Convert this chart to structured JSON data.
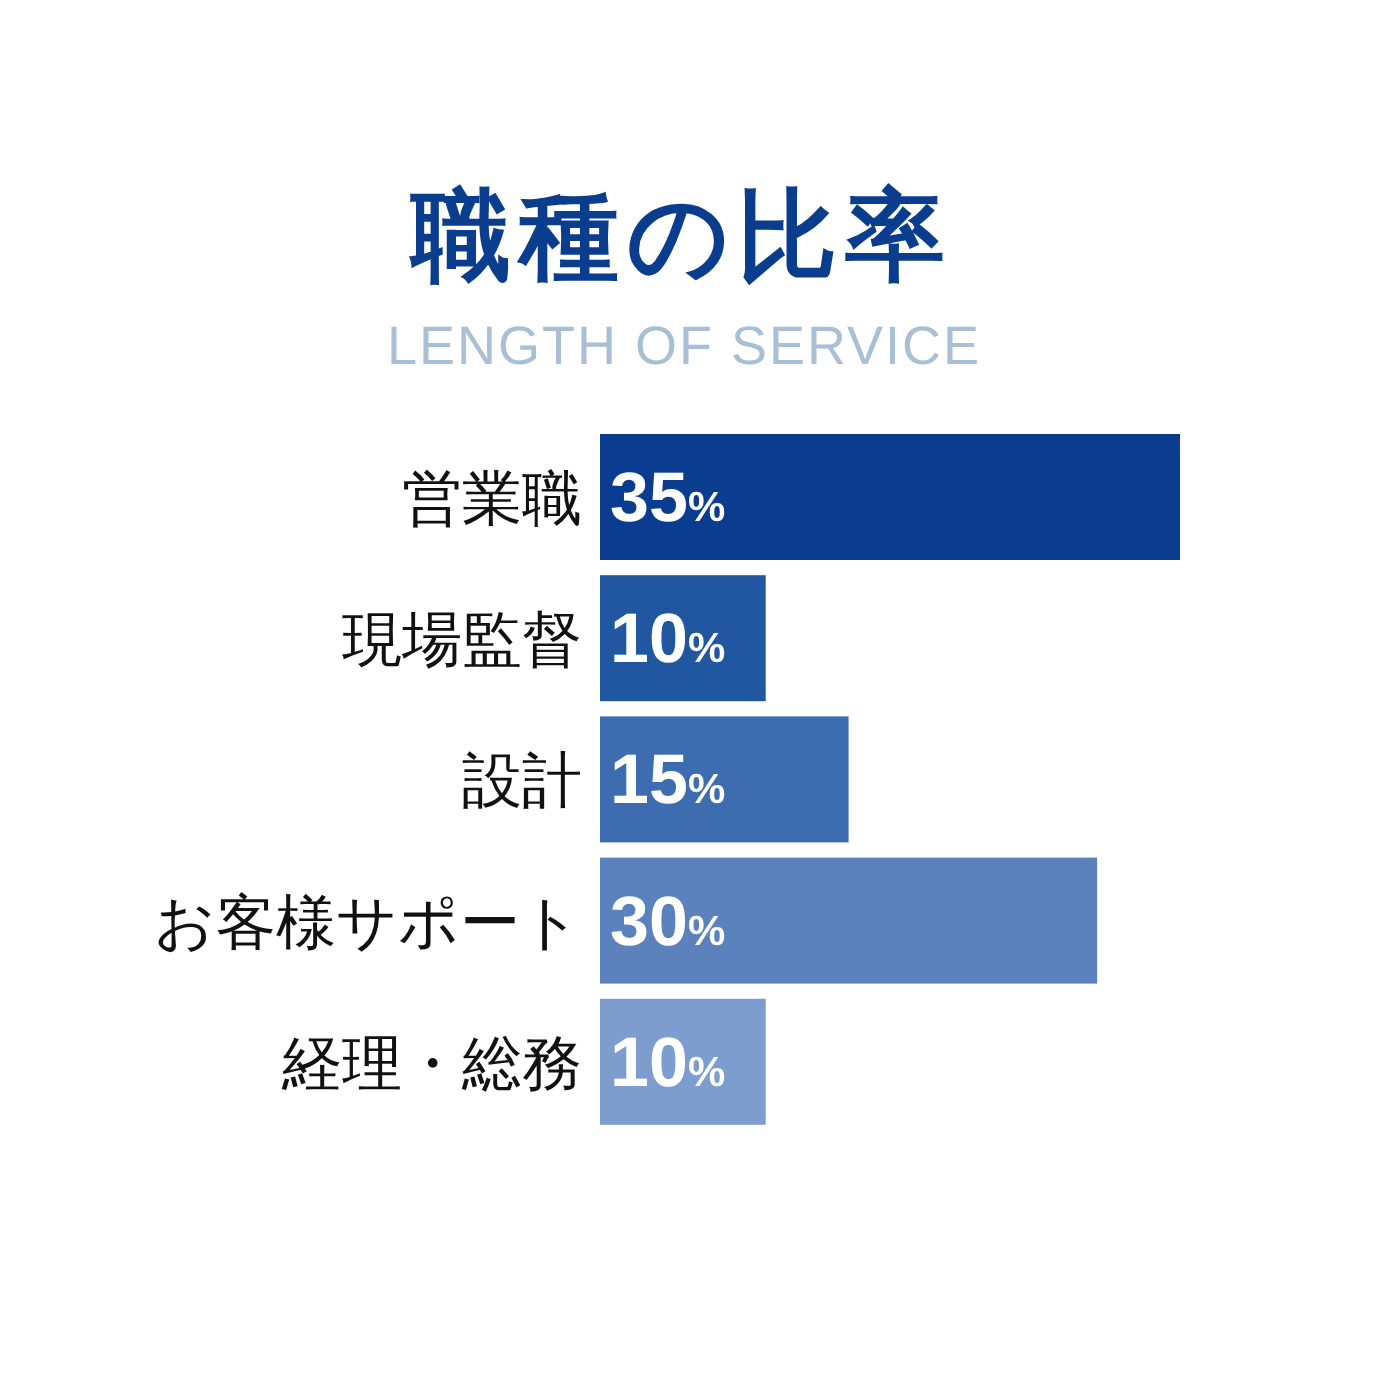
{
  "chart_data": {
    "type": "bar",
    "orientation": "horizontal",
    "title": "職種の比率",
    "subtitle": "LENGTH OF SERVICE",
    "categories": [
      "営業職",
      "現場監督",
      "設計",
      "お客様サポート",
      "経理・総務"
    ],
    "values": [
      35,
      10,
      15,
      30,
      10
    ],
    "colors": [
      "#0a3d8f",
      "#2157a0",
      "#3d6cb0",
      "#5b82bd",
      "#7e9dcf"
    ],
    "value_labels": [
      "35%",
      "10%",
      "15%",
      "30%",
      "10%"
    ]
  }
}
